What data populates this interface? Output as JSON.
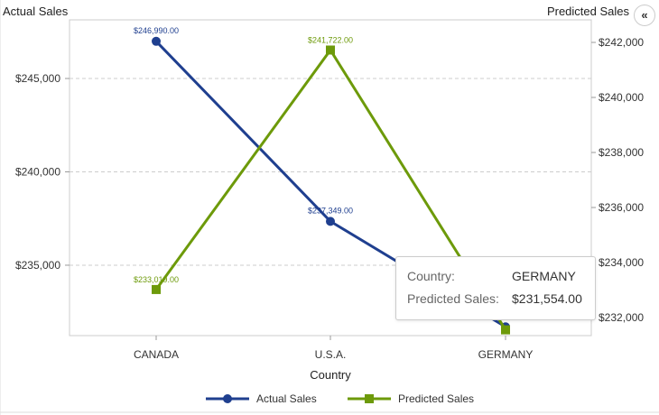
{
  "chart_data": {
    "type": "line",
    "categories": [
      "CANADA",
      "U.S.A.",
      "GERMANY"
    ],
    "xlabel": "Country",
    "series": [
      {
        "name": "Actual Sales",
        "axis": "left",
        "color": "#1f3f8f",
        "marker": "circle",
        "values": [
          246990.0,
          237349.0,
          231700
        ],
        "labels": [
          "$246,990.00",
          "$237,349.00",
          ""
        ]
      },
      {
        "name": "Predicted Sales",
        "axis": "right",
        "color": "#6d9a0a",
        "marker": "square",
        "values": [
          233019.0,
          241722.0,
          231554.0
        ],
        "labels": [
          "$233,019.00",
          "$241,722.00",
          ""
        ]
      }
    ],
    "y_left": {
      "label": "Actual Sales",
      "ylim": [
        231230,
        248140
      ],
      "ticks": [
        235000,
        240000,
        245000
      ],
      "tick_labels": [
        "$235,000",
        "$240,000",
        "$245,000"
      ]
    },
    "y_right": {
      "label": "Predicted Sales",
      "ylim": [
        231344,
        242820
      ],
      "ticks": [
        232000,
        234000,
        236000,
        238000,
        240000,
        242000
      ],
      "tick_labels": [
        "$232,000",
        "$234,000",
        "$236,000",
        "$238,000",
        "$240,000",
        "$242,000"
      ]
    },
    "grid": true,
    "legend": "bottom"
  },
  "tooltip": {
    "country_label": "Country:",
    "country_value": "GERMANY",
    "sales_label": "Predicted Sales:",
    "sales_value": "$231,554.00"
  },
  "collapse_icon": "double-chevron-left-icon",
  "collapse_glyph": "«"
}
